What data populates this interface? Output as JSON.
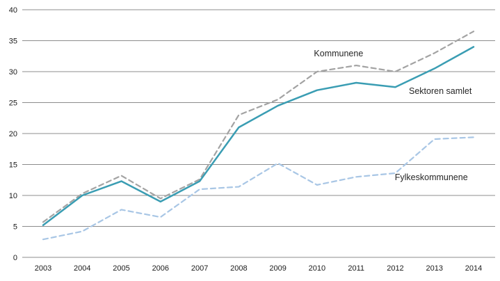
{
  "chart_data": {
    "type": "line",
    "title": "",
    "xlabel": "",
    "ylabel": "",
    "x": [
      2003,
      2004,
      2005,
      2006,
      2007,
      2008,
      2009,
      2010,
      2011,
      2012,
      2013,
      2014
    ],
    "ylim": [
      0,
      40
    ],
    "yticks": [
      0,
      5,
      10,
      15,
      20,
      25,
      30,
      35,
      40
    ],
    "grid": true,
    "grid_color": "#8c8c8c",
    "legend_position": "inline-annotations",
    "series": [
      {
        "id": "kommunene",
        "name": "Kommunene",
        "values": [
          5.7,
          10.3,
          13.2,
          9.5,
          12.6,
          23.0,
          25.5,
          30.0,
          31.0,
          30.0,
          33.0,
          36.5
        ],
        "color": "#a3a3a3",
        "dash": "7 5",
        "width": 2.2
      },
      {
        "id": "sektoren-samlet",
        "name": "Sektoren samlet",
        "values": [
          5.2,
          10.0,
          12.3,
          9.0,
          12.3,
          21.0,
          24.5,
          27.0,
          28.2,
          27.5,
          30.5,
          34.0
        ],
        "color": "#3a9db3",
        "dash": null,
        "width": 2.5
      },
      {
        "id": "fylkeskommunene",
        "name": "Fylkeskommunene",
        "values": [
          2.9,
          4.2,
          7.7,
          6.5,
          11.0,
          11.4,
          15.2,
          11.7,
          13.0,
          13.6,
          19.1,
          19.4
        ],
        "color": "#a8c6e5",
        "dash": "7 5",
        "width": 2.2
      }
    ],
    "annotations": [
      {
        "id": "kommunene",
        "text": "Kommunene",
        "x": 2010.55,
        "y": 32.5,
        "anchor": "middle"
      },
      {
        "id": "sektoren-samlet",
        "text": "Sektoren samlet",
        "x": 2013.15,
        "y": 26.4,
        "anchor": "middle"
      },
      {
        "id": "fylkeskommunene",
        "text": "Fylkeskommunene",
        "x": 2012.92,
        "y": 12.5,
        "anchor": "middle"
      }
    ]
  }
}
